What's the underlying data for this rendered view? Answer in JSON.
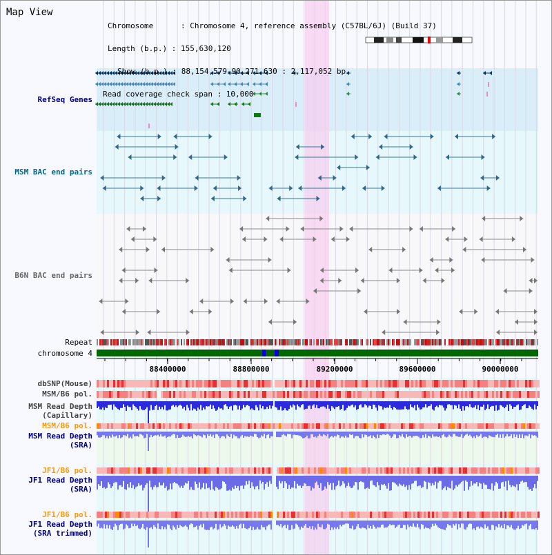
{
  "title": "Map View",
  "header": {
    "chromosome": "Chromosome      : Chromosome 4, reference assembly (C57BL/6J) (Build 37)",
    "length": "Length (b.p.) : 155,630,120",
    "show": "Show (b.p.) : 88,154,579-90,271,630 : 2,117,052 bp",
    "span": "Read coverage check span : 10,000"
  },
  "tracks": {
    "refseq": "RefSeq Genes",
    "msm_bac": "MSM BAC end pairs",
    "b6n_bac": "B6N BAC end pairs",
    "repeat": "Repeat",
    "chromosome": "chromosome 4",
    "dbsnp": "dbSNP(Mouse)",
    "msm_b6_pol_1": "MSM/B6 pol.",
    "msm_depth_cap": "MSM Read Depth",
    "msm_depth_cap_sub": "(Capillary)",
    "msm_b6_pol_2": "MSM/B6 pol.",
    "msm_depth_sra": "MSM Read Depth",
    "msm_depth_sra_sub": "(SRA)",
    "jf1_b6_pol_1": "JF1/B6 pol.",
    "jf1_depth_sra": "JF1 Read Depth",
    "jf1_depth_sra_sub": "(SRA)",
    "jf1_b6_pol_2": "JF1/B6 pol.",
    "jf1_depth_trim": "JF1 Read Depth",
    "jf1_depth_trim_sub": "(SRA trimmed)"
  },
  "axis": {
    "ticks": [
      "88400000",
      "88800000",
      "89200000",
      "89600000",
      "90000000"
    ]
  },
  "colors": {
    "refseq_bg": "#daeefa",
    "msm_bg": "#e4f8fc",
    "highlight": "#f8d8f0",
    "label_blue": "#000080",
    "label_orange": "#ff9900",
    "label_gray": "#444444",
    "label_teal": "#006688"
  }
}
